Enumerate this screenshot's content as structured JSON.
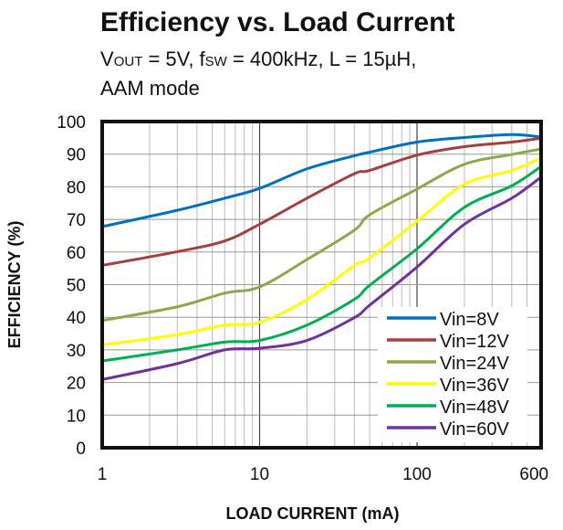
{
  "chart_data": {
    "type": "line",
    "title": "Efficiency vs. Load Current",
    "subtitle": {
      "line1": {
        "v": "V",
        "v_sub": "OUT",
        "v_rest": " = 5V, f",
        "f_sub": "SW",
        "rest": " = 400kHz, L = 15µH,"
      },
      "line2": "AAM mode"
    },
    "xlabel": "LOAD CURRENT  (mA)",
    "ylabel": "EFFICIENCY  (%)",
    "xscale": "log",
    "xlim": [
      1,
      600
    ],
    "ylim": [
      0,
      100
    ],
    "xticks": [
      {
        "v": 1,
        "label": "1"
      },
      {
        "v": 10,
        "label": "10"
      },
      {
        "v": 100,
        "label": "100"
      },
      {
        "v": 600,
        "label": "600"
      }
    ],
    "yticks": [
      0,
      10,
      20,
      30,
      40,
      50,
      60,
      70,
      80,
      90,
      100
    ],
    "grid": true,
    "legend": "bottom-right",
    "x": [
      1,
      3,
      6,
      10,
      20,
      40,
      50,
      100,
      200,
      400,
      600
    ],
    "series": [
      {
        "name": "Vin=8V",
        "color": "#0070c0",
        "values": [
          67.8,
          72.8,
          76.5,
          79.5,
          85.5,
          89.5,
          90.6,
          93.7,
          95.1,
          96.0,
          95.3
        ]
      },
      {
        "name": "Vin=12V",
        "color": "#a5403c",
        "values": [
          55.9,
          60.1,
          63.4,
          68.5,
          76.5,
          84.0,
          85.0,
          89.7,
          92.3,
          93.7,
          94.8
        ]
      },
      {
        "name": "Vin=24V",
        "color": "#8ea84a",
        "values": [
          39.0,
          43.2,
          47.4,
          49.3,
          57.7,
          66.7,
          71.4,
          79.3,
          86.9,
          89.9,
          91.5
        ]
      },
      {
        "name": "Vin=36V",
        "color": "#ffff00",
        "values": [
          31.5,
          34.7,
          37.6,
          38.5,
          45.5,
          55.9,
          58.2,
          69.5,
          80.8,
          85.0,
          88.7
        ]
      },
      {
        "name": "Vin=48V",
        "color": "#00b050",
        "values": [
          26.6,
          30.0,
          32.4,
          32.9,
          37.6,
          45.5,
          49.8,
          61.0,
          73.7,
          80.3,
          85.9
        ]
      },
      {
        "name": "Vin=60V",
        "color": "#7030a0",
        "values": [
          20.9,
          25.8,
          30.0,
          30.5,
          32.9,
          39.9,
          43.7,
          55.4,
          68.5,
          76.5,
          82.6
        ]
      }
    ]
  }
}
